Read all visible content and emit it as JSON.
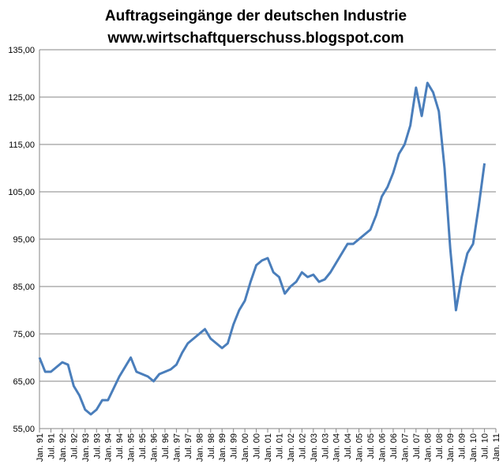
{
  "chart_data": {
    "type": "line",
    "title": "Auftragseingänge der deutschen Industrie",
    "subtitle": "www.wirtschaftquerschuss.blogspot.com",
    "categories": [
      "Jan. 91",
      null,
      "Jul. 91",
      null,
      "Jan. 92",
      null,
      "Jul. 92",
      null,
      "Jan. 93",
      null,
      "Jul. 93",
      null,
      "Jan. 94",
      null,
      "Jul. 94",
      null,
      "Jan. 95",
      null,
      "Jul. 95",
      null,
      "Jan. 96",
      null,
      "Jul. 96",
      null,
      "Jan. 97",
      null,
      "Jul. 97",
      null,
      "Jan. 98",
      null,
      "Jul. 98",
      null,
      "Jan. 99",
      null,
      "Jul. 99",
      null,
      "Jan. 00",
      null,
      "Jul. 00",
      null,
      "Jan. 01",
      null,
      "Jul. 01",
      null,
      "Jan. 02",
      null,
      "Jul. 02",
      null,
      "Jan. 03",
      null,
      "Jul. 03",
      null,
      "Jan. 04",
      null,
      "Jul. 04",
      null,
      "Jan. 05",
      null,
      "Jul. 05",
      null,
      "Jan. 06",
      null,
      "Jul. 06",
      null,
      "Jan. 07",
      null,
      "Jul. 07",
      null,
      "Jan. 08",
      null,
      "Jul. 08",
      null,
      "Jan. 09",
      null,
      "Jul. 09",
      null,
      "Jan. 10",
      null,
      "Jul. 10",
      null,
      "Jan. 11"
    ],
    "series": [
      {
        "name": "Auftragseingänge",
        "color": "#4a7ebb",
        "values": [
          70,
          67,
          67,
          68,
          69,
          68.5,
          64,
          62,
          59,
          58,
          59,
          61,
          61,
          63.5,
          66,
          68,
          70,
          67,
          66.5,
          66,
          65,
          66.5,
          67,
          67.5,
          68.5,
          71,
          73,
          74,
          75,
          76,
          74,
          73,
          72,
          73,
          77,
          80,
          82,
          86,
          89.5,
          90.5,
          91,
          88,
          87,
          83.5,
          85,
          86,
          88,
          87,
          87.5,
          86,
          86.5,
          88,
          90,
          92,
          94,
          94,
          95,
          96,
          97,
          100,
          104,
          106,
          109,
          113,
          115,
          119,
          127,
          121,
          128,
          126,
          122,
          110,
          93,
          80,
          87,
          92,
          94,
          102,
          111,
          null,
          null
        ]
      }
    ],
    "ylim": [
      55,
      135
    ],
    "yticks": [
      {
        "value": 55,
        "label": "55,00"
      },
      {
        "value": 65,
        "label": "65,00"
      },
      {
        "value": 75,
        "label": "75,00"
      },
      {
        "value": 85,
        "label": "85,00"
      },
      {
        "value": 95,
        "label": "95,00"
      },
      {
        "value": 105,
        "label": "105,00"
      },
      {
        "value": 115,
        "label": "115,00"
      },
      {
        "value": 125,
        "label": "125,00"
      },
      {
        "value": 135,
        "label": "135,00"
      }
    ],
    "grid": true
  }
}
